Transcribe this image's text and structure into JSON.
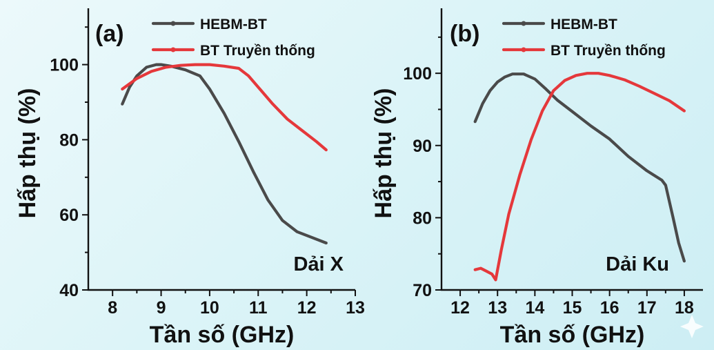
{
  "chart_data": [
    {
      "type": "line",
      "panel_label": "(a)",
      "band_label": "Dải X",
      "xlabel": "Tần số (GHz)",
      "ylabel": "Hấp thụ (%)",
      "xlim": [
        7.5,
        13
      ],
      "ylim": [
        40,
        115
      ],
      "xticks": [
        8,
        9,
        10,
        11,
        12,
        13
      ],
      "yticks": [
        40,
        60,
        80,
        100
      ],
      "legend_position": "top-right",
      "series": [
        {
          "name": "HEBM-BT",
          "color": "#4a4a4a",
          "x": [
            8.2,
            8.35,
            8.5,
            8.7,
            8.9,
            9.0,
            9.2,
            9.5,
            9.8,
            10.0,
            10.3,
            10.6,
            10.9,
            11.2,
            11.5,
            11.8,
            12.1,
            12.4
          ],
          "y": [
            89.5,
            94,
            97,
            99.3,
            100,
            100,
            99.6,
            98.6,
            97,
            93.5,
            87,
            79.5,
            71.5,
            64,
            58.5,
            55.5,
            54,
            52.5
          ]
        },
        {
          "name": "BT Truyền thống",
          "color": "#e5383b",
          "x": [
            8.2,
            8.5,
            8.8,
            9.1,
            9.4,
            9.7,
            10.0,
            10.3,
            10.6,
            10.8,
            11.0,
            11.3,
            11.6,
            11.9,
            12.2,
            12.4
          ],
          "y": [
            93.5,
            96.3,
            98.2,
            99.3,
            99.8,
            100,
            100,
            99.6,
            99,
            97,
            94,
            89.5,
            85.5,
            82.5,
            79.5,
            77.3
          ]
        }
      ]
    },
    {
      "type": "line",
      "panel_label": "(b)",
      "band_label": "Dải Ku",
      "xlabel": "Tần số (GHz)",
      "ylabel": "Hấp thụ (%)",
      "xlim": [
        11.5,
        18.5
      ],
      "ylim": [
        70,
        109
      ],
      "xticks": [
        12,
        13,
        14,
        15,
        16,
        17,
        18
      ],
      "yticks": [
        70,
        80,
        90,
        100
      ],
      "legend_position": "top-right",
      "series": [
        {
          "name": "HEBM-BT",
          "color": "#4a4a4a",
          "x": [
            12.4,
            12.6,
            12.8,
            13.0,
            13.2,
            13.4,
            13.7,
            14.0,
            14.3,
            14.6,
            15.0,
            15.5,
            16.0,
            16.5,
            17.0,
            17.4,
            17.5,
            17.7,
            17.85,
            18.0
          ],
          "y": [
            93.3,
            95.8,
            97.6,
            98.8,
            99.5,
            99.9,
            99.9,
            99.2,
            97.8,
            96.3,
            94.7,
            92.7,
            90.9,
            88.5,
            86.5,
            85.2,
            84.5,
            80,
            76.5,
            74
          ]
        },
        {
          "name": "BT Truyền thống",
          "color": "#e5383b",
          "x": [
            12.4,
            12.55,
            12.7,
            12.85,
            12.95,
            13.1,
            13.3,
            13.6,
            13.9,
            14.2,
            14.5,
            14.8,
            15.1,
            15.4,
            15.7,
            16.0,
            16.4,
            16.8,
            17.2,
            17.6,
            18.0
          ],
          "y": [
            72.8,
            73,
            72.6,
            72.2,
            71.4,
            75.5,
            80.5,
            86,
            90.8,
            94.8,
            97.6,
            99,
            99.7,
            100,
            100,
            99.7,
            99.1,
            98.2,
            97.2,
            96.2,
            94.8
          ]
        }
      ]
    }
  ]
}
